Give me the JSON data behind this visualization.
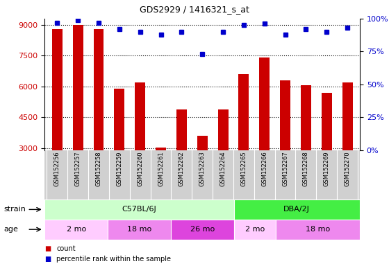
{
  "title": "GDS2929 / 1416321_s_at",
  "samples": [
    "GSM152256",
    "GSM152257",
    "GSM152258",
    "GSM152259",
    "GSM152260",
    "GSM152261",
    "GSM152262",
    "GSM152263",
    "GSM152264",
    "GSM152265",
    "GSM152266",
    "GSM152267",
    "GSM152268",
    "GSM152269",
    "GSM152270"
  ],
  "counts": [
    8800,
    9000,
    8800,
    5900,
    6200,
    3050,
    4900,
    3600,
    4900,
    6600,
    7400,
    6300,
    6050,
    5700,
    6200
  ],
  "percentile_ranks": [
    97,
    99,
    97,
    92,
    90,
    88,
    90,
    73,
    90,
    95,
    96,
    88,
    92,
    90,
    93
  ],
  "bar_color": "#cc0000",
  "dot_color": "#0000cc",
  "ylim_left": [
    2900,
    9300
  ],
  "ylim_right": [
    0,
    100
  ],
  "yticks_left": [
    3000,
    4500,
    6000,
    7500,
    9000
  ],
  "yticks_right": [
    0,
    25,
    50,
    75,
    100
  ],
  "strain_groups": [
    {
      "label": "C57BL/6J",
      "start": 0,
      "end": 9,
      "color": "#ccffcc"
    },
    {
      "label": "DBA/2J",
      "start": 9,
      "end": 15,
      "color": "#44ee44"
    }
  ],
  "age_groups": [
    {
      "label": "2 mo",
      "start": 0,
      "end": 3,
      "color": "#ffccff"
    },
    {
      "label": "18 mo",
      "start": 3,
      "end": 6,
      "color": "#ee88ee"
    },
    {
      "label": "26 mo",
      "start": 6,
      "end": 9,
      "color": "#dd44dd"
    },
    {
      "label": "2 mo",
      "start": 9,
      "end": 11,
      "color": "#ffccff"
    },
    {
      "label": "18 mo",
      "start": 11,
      "end": 15,
      "color": "#ee88ee"
    }
  ],
  "grid_color": "#000000",
  "bg_color": "#ffffff",
  "tick_label_color_left": "#cc0000",
  "tick_label_color_right": "#0000cc",
  "label_bg_color": "#d0d0d0"
}
